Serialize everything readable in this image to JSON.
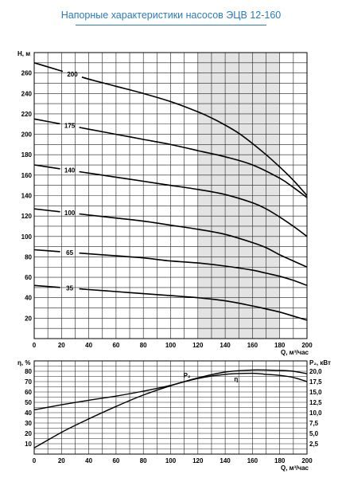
{
  "title": "Напорные характеристики насосов ЭЦВ 12-160",
  "chart_data": [
    {
      "type": "line",
      "xlabel": "Q, м³/час",
      "ylabel": "H, м",
      "xlim": [
        0,
        200
      ],
      "ylim": [
        0,
        280
      ],
      "x_ticks": [
        "0",
        "20",
        "40",
        "60",
        "80",
        "100",
        "120",
        "140",
        "160",
        "180",
        "200"
      ],
      "y_ticks": [
        "20",
        "40",
        "60",
        "80",
        "100",
        "120",
        "140",
        "160",
        "180",
        "200",
        "220",
        "240",
        "260"
      ],
      "grid": true,
      "shaded_region": {
        "x": [
          120,
          180
        ]
      },
      "series": [
        {
          "name": "200",
          "x": [
            0,
            10,
            20,
            30,
            40,
            60,
            80,
            100,
            120,
            130,
            140,
            150,
            160,
            170,
            180,
            190,
            200
          ],
          "y": [
            270,
            266,
            262,
            258,
            254,
            247,
            240,
            232,
            222,
            216,
            209,
            201,
            191,
            180,
            168,
            155,
            140
          ]
        },
        {
          "name": "175",
          "x": [
            0,
            20,
            40,
            60,
            80,
            100,
            120,
            140,
            160,
            180,
            190,
            200
          ],
          "y": [
            215,
            210,
            205,
            200,
            195,
            190,
            184,
            178,
            170,
            157,
            148,
            138
          ]
        },
        {
          "name": "140",
          "x": [
            0,
            20,
            40,
            60,
            80,
            100,
            120,
            140,
            160,
            170,
            180,
            190,
            200
          ],
          "y": [
            170,
            166,
            162,
            158,
            154,
            150,
            146,
            141,
            133,
            127,
            119,
            110,
            100
          ]
        },
        {
          "name": "100",
          "x": [
            0,
            20,
            40,
            60,
            80,
            100,
            120,
            140,
            160,
            170,
            180,
            190,
            200
          ],
          "y": [
            127,
            124,
            121,
            118,
            115,
            111,
            107,
            102,
            94,
            89,
            82,
            76,
            70
          ]
        },
        {
          "name": "65",
          "x": [
            0,
            20,
            40,
            60,
            80,
            100,
            120,
            140,
            160,
            170,
            180,
            190,
            200
          ],
          "y": [
            87,
            85,
            83,
            81,
            79,
            76,
            74,
            71,
            67,
            64,
            61,
            57,
            52
          ]
        },
        {
          "name": "35",
          "x": [
            0,
            20,
            40,
            60,
            80,
            100,
            120,
            140,
            160,
            170,
            180,
            190,
            200
          ],
          "y": [
            52,
            50,
            48,
            46,
            44,
            42,
            40,
            37,
            32,
            29,
            26,
            22,
            18
          ]
        }
      ]
    },
    {
      "type": "line",
      "xlabel": "Q, м³/час",
      "ylabel": "η, %",
      "y2label": "P₂, кВт",
      "xlim": [
        0,
        200
      ],
      "ylim": [
        0,
        90
      ],
      "y2lim": [
        0,
        22.5
      ],
      "x_ticks": [
        "0",
        "20",
        "40",
        "60",
        "80",
        "100",
        "120",
        "140",
        "160",
        "180",
        "200"
      ],
      "y_ticks": [
        "10",
        "20",
        "30",
        "40",
        "50",
        "60",
        "70",
        "80"
      ],
      "y2_ticks": [
        "2,5",
        "5,0",
        "7,5",
        "10,0",
        "12,5",
        "15,0",
        "17,5",
        "20,0"
      ],
      "grid": true,
      "series": [
        {
          "name": "η",
          "axis": "left",
          "x": [
            0,
            20,
            40,
            60,
            80,
            100,
            120,
            140,
            160,
            170,
            180,
            190,
            200
          ],
          "y": [
            6,
            21,
            34,
            46,
            57,
            66,
            73,
            77,
            78,
            77,
            76,
            74,
            70
          ]
        },
        {
          "name": "P₂",
          "axis": "right",
          "x": [
            0,
            20,
            40,
            60,
            80,
            100,
            120,
            140,
            160,
            180,
            190,
            200
          ],
          "y": [
            10.7,
            11.9,
            13.0,
            14.0,
            15.2,
            16.6,
            18.4,
            19.8,
            20.3,
            20.2,
            20.0,
            19.4
          ]
        }
      ]
    }
  ]
}
